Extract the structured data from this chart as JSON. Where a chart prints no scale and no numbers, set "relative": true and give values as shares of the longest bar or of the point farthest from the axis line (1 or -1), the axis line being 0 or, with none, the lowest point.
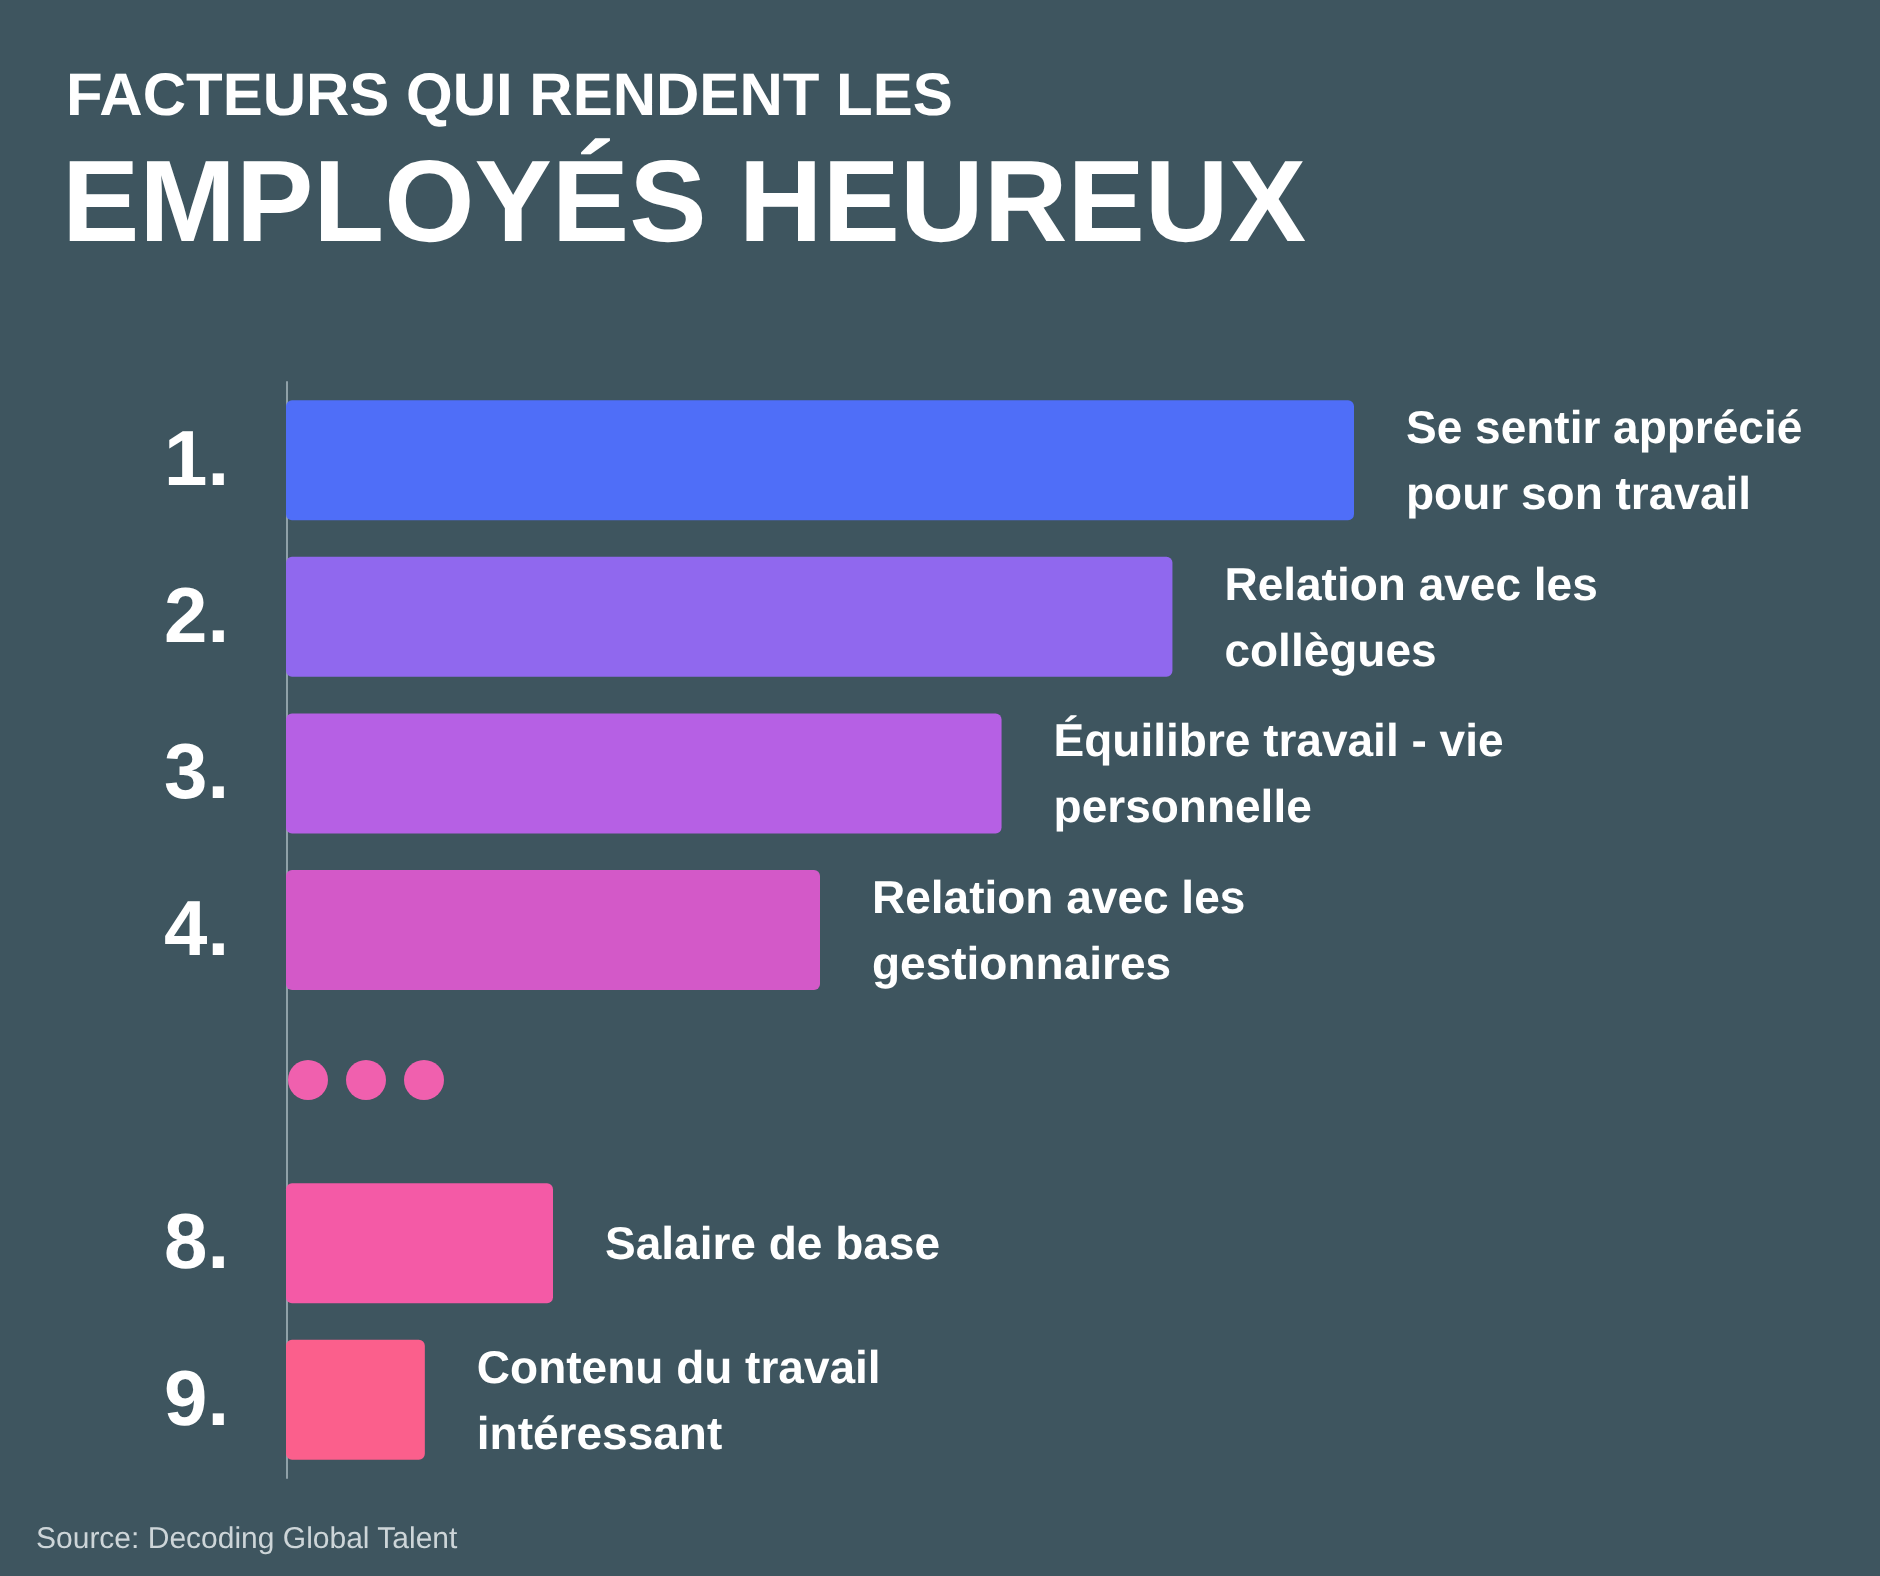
{
  "chart_data": {
    "type": "bar",
    "orientation": "horizontal",
    "relative": true,
    "subtitle": "FACTEURS QUI RENDENT LES",
    "title": "EMPLOYÉS HEUREUX",
    "categories": [
      "1.",
      "2.",
      "3.",
      "4.",
      null,
      "8.",
      "9."
    ],
    "values": [
      1,
      0.83,
      0.67,
      0.5,
      null,
      0.25,
      0.13
    ],
    "colors": [
      "#4f6ef8",
      "#9068ee",
      "#b660e4",
      "#d359c8",
      null,
      "#f45aa6",
      "#fb5f8c"
    ],
    "annotations": [
      {
        "text": "Se sentir apprécié pour son travail",
        "x": 1,
        "y": "1."
      },
      {
        "text": "Relation avec les collègues",
        "x": 0.83,
        "y": "2."
      },
      {
        "text": "Équilibre travail - vie personnelle",
        "x": 0.67,
        "y": "3."
      },
      {
        "text": "Relation avec les gestionnaires",
        "x": 0.5,
        "y": "4."
      },
      {
        "text": "Salaire de base",
        "x": 0.25,
        "y": "8."
      },
      {
        "text": "Contenu du travail intéressant",
        "x": 0.13,
        "y": "9."
      },
      "Source: Decoding Global Talent"
    ]
  }
}
